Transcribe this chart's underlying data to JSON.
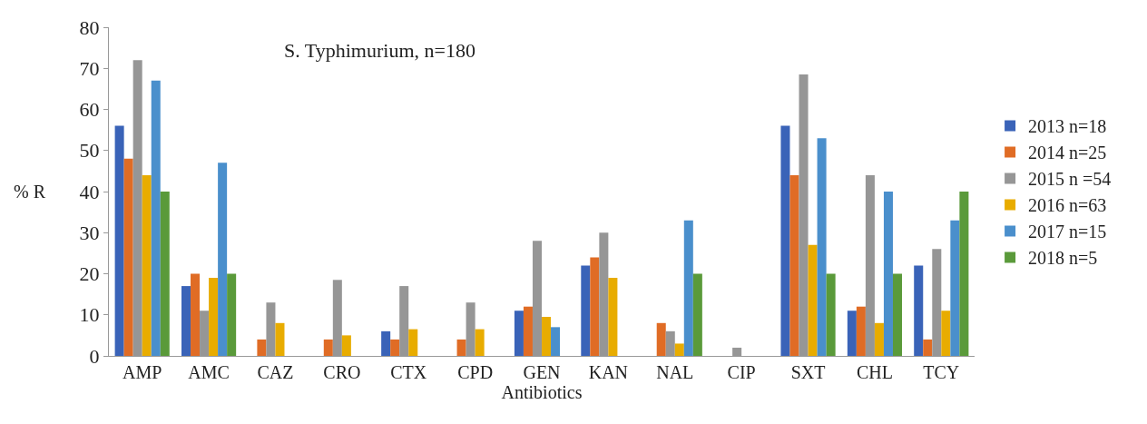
{
  "chart_data": {
    "type": "bar",
    "annotations": [
      "S. Typhimurium, n=180"
    ],
    "xlabel": "Antibiotics",
    "ylabel": "% R",
    "categories": [
      "AMP",
      "AMC",
      "CAZ",
      "CRO",
      "CTX",
      "CPD",
      "GEN",
      "KAN",
      "NAL",
      "CIP",
      "SXT",
      "CHL",
      "TCY"
    ],
    "series": [
      {
        "name": "2013 n=18",
        "color": "#3a63b8",
        "values": [
          56,
          17,
          0,
          0,
          6,
          0,
          11,
          22,
          0,
          0,
          56,
          11,
          22
        ]
      },
      {
        "name": "2014 n=25",
        "color": "#e06c25",
        "values": [
          48,
          20,
          4,
          4,
          4,
          4,
          12,
          24,
          8,
          0,
          44,
          12,
          4
        ]
      },
      {
        "name": "2015 n =54",
        "color": "#969696",
        "values": [
          72,
          11,
          13,
          18.5,
          17,
          13,
          28,
          30,
          6,
          2,
          68.5,
          44,
          26
        ]
      },
      {
        "name": "2016 n=63",
        "color": "#e8ac00",
        "values": [
          44,
          19,
          8,
          5,
          6.5,
          6.5,
          9.5,
          19,
          3,
          0,
          27,
          8,
          11
        ]
      },
      {
        "name": "2017 n=15",
        "color": "#4a8fcc",
        "values": [
          67,
          47,
          0,
          0,
          0,
          0,
          7,
          0,
          33,
          0,
          53,
          40,
          33
        ]
      },
      {
        "name": "2018 n=5",
        "color": "#5a9a3a",
        "values": [
          40,
          20,
          0,
          0,
          0,
          0,
          0,
          0,
          20,
          0,
          20,
          20,
          40
        ]
      }
    ],
    "ylim": [
      0,
      80
    ],
    "yticks": [
      0,
      10,
      20,
      30,
      40,
      50,
      60,
      70,
      80
    ],
    "legend": "right"
  }
}
